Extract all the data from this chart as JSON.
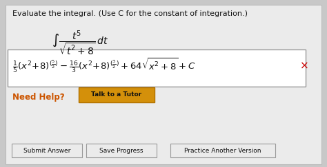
{
  "bg_color": "#c8c8c8",
  "panel_color": "#ebebeb",
  "title_text": "Evaluate the integral. (Use C for the constant of integration.)",
  "title_fontsize": 8.0,
  "integral_fontsize": 10.0,
  "answer_fontsize": 9.5,
  "answer_box_color": "#ffffff",
  "answer_box_edgecolor": "#999999",
  "answer_x_color": "#cc0000",
  "need_help_color": "#cc5500",
  "need_help_text": "Need Help?",
  "need_help_fontsize": 8.5,
  "talk_button_text": "Talk to a Tutor",
  "talk_button_bg": "#d4900a",
  "talk_button_edge": "#b07000",
  "button_texts": [
    "Submit Answer",
    "Save Progress",
    "Practice Another Version"
  ],
  "button_bg": "#ebebeb",
  "button_edge": "#999999",
  "text_color": "#111111"
}
